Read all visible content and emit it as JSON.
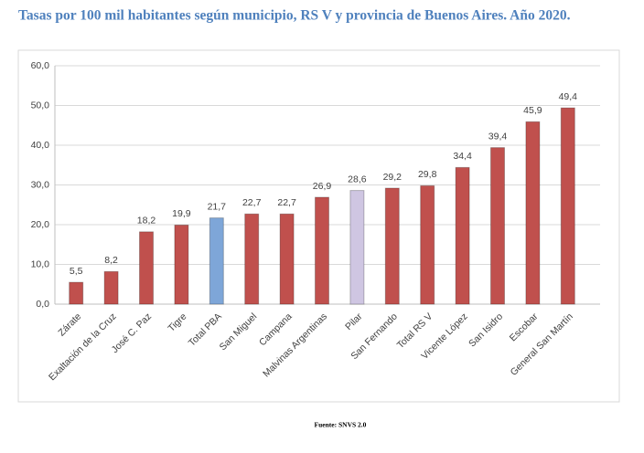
{
  "chart_data": {
    "type": "bar",
    "title": "Tasas por 100 mil habitantes según municipio, RS V y provincia de Buenos Aires. Año 2020.",
    "source": "Fuente: SNVS 2.0",
    "categories": [
      "Zárate",
      "Exaltación de la Cruz",
      "José C. Paz",
      "Tigre",
      "Total PBA",
      "San Miguel",
      "Campana",
      "Malvinas Argentinas",
      "Pilar",
      "San Fernando",
      "Total RS V",
      "Vicente López",
      "San Isidro",
      "Escobar",
      "General San Martín"
    ],
    "values": [
      5.5,
      8.2,
      18.2,
      19.9,
      21.7,
      22.7,
      22.7,
      26.9,
      28.6,
      29.2,
      29.8,
      34.4,
      39.4,
      45.9,
      49.4
    ],
    "value_labels": [
      "5,5",
      "8,2",
      "18,2",
      "19,9",
      "21,7",
      "22,7",
      "22,7",
      "26,9",
      "28,6",
      "29,2",
      "29,8",
      "34,4",
      "39,4",
      "45,9",
      "49,4"
    ],
    "colors": [
      "#c0504d",
      "#c0504d",
      "#c0504d",
      "#c0504d",
      "#7ea6d8",
      "#c0504d",
      "#c0504d",
      "#c0504d",
      "#cfc6e2",
      "#c0504d",
      "#c0504d",
      "#c0504d",
      "#c0504d",
      "#c0504d",
      "#c0504d"
    ],
    "ylim": [
      0,
      60
    ],
    "yticks": [
      {
        "value": 0,
        "label": "0,0"
      },
      {
        "value": 10,
        "label": "10,0"
      },
      {
        "value": 20,
        "label": "20,0"
      },
      {
        "value": 30,
        "label": "30,0"
      },
      {
        "value": 40,
        "label": "40,0"
      },
      {
        "value": 50,
        "label": "50,0"
      },
      {
        "value": 60,
        "label": "60,0"
      }
    ],
    "grid": true
  }
}
